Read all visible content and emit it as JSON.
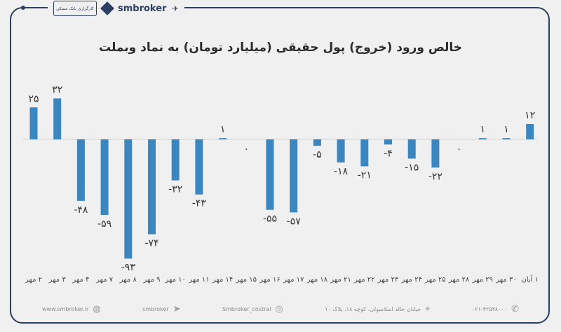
{
  "header": {
    "logo_text": "کارگزاری بانک مسکن",
    "brand": "smbroker",
    "brand_icon": "paper-plane-icon"
  },
  "chart_data": {
    "type": "bar",
    "title": "خالص ورود (خروج) پول حقیقی (میلیارد تومان) به نماد وبملت",
    "categories": [
      "۲ مهر",
      "۳ مهر",
      "۴ مهر",
      "۷ مهر",
      "۸ مهر",
      "۹ مهر",
      "۱۰ مهر",
      "۱۱ مهر",
      "۱۴ مهر",
      "۱۵ مهر",
      "۱۶ مهر",
      "۱۷ مهر",
      "۱۸ مهر",
      "۲۱ مهر",
      "۲۲ مهر",
      "۲۳ مهر",
      "۲۴ مهر",
      "۲۵ مهر",
      "۲۸ مهر",
      "۲۹ مهر",
      "۳۰ مهر",
      "۱ آبان"
    ],
    "values": [
      25,
      32,
      -48,
      -59,
      -93,
      -74,
      -32,
      -43,
      1,
      0,
      -55,
      -57,
      -5,
      -18,
      -21,
      -4,
      -15,
      -22,
      0,
      1,
      1,
      12
    ],
    "value_labels": [
      "۲۵",
      "۳۲",
      "-۴۸",
      "-۵۹",
      "-۹۳",
      "-۷۴",
      "-۳۲",
      "-۴۳",
      "۱",
      "۰",
      "-۵۵",
      "-۵۷",
      "-۵",
      "-۱۸",
      "-۲۱",
      "-۴",
      "-۱۵",
      "-۲۲",
      "۰",
      "۱",
      "۱",
      "۱۲"
    ],
    "bar_color": "#3a86c0",
    "grid": false,
    "legend": "none"
  },
  "footer": {
    "website": "www.smbroker.ir",
    "telegram": "smbroker",
    "instagram": "Smbroker_costral",
    "address": "خیابان خالد اسلامبولی، کوچه ۱۸، پلاک ۱۰",
    "phone": "۰۲۱-۴۲۵۴۸۰۰۰"
  }
}
